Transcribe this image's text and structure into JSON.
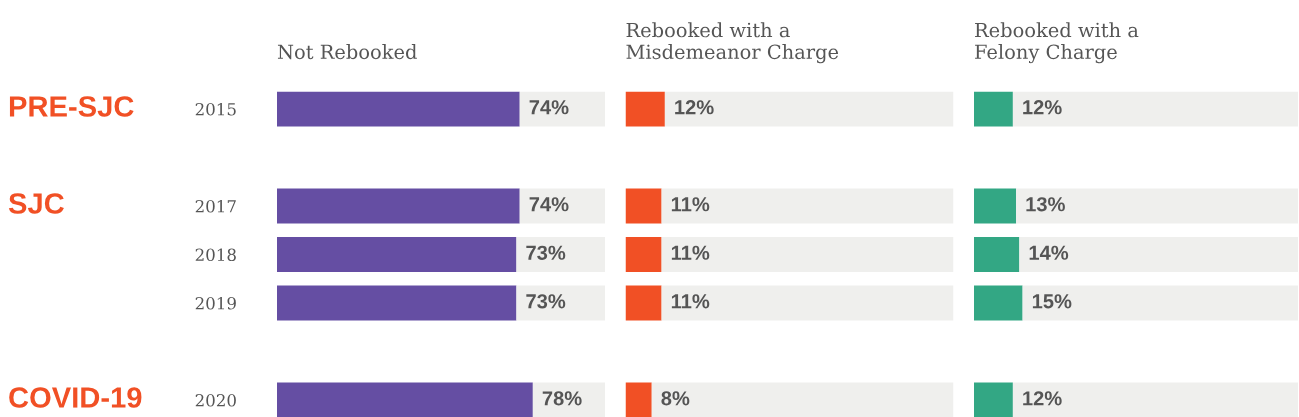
{
  "chart_data": [
    {
      "type": "bar",
      "orientation": "horizontal",
      "stacked": true,
      "title": "Not Rebooked",
      "categories": [
        "2015",
        null,
        "2017",
        "2018",
        "2019",
        null,
        "2020"
      ],
      "series": [
        {
          "color": "#654ea3",
          "values": [
            74,
            null,
            74,
            73,
            73,
            null,
            78
          ],
          "value_labels": [
            "74%",
            null,
            "74%",
            "73%",
            "73%",
            null,
            "78%"
          ]
        },
        {
          "color": "#efefed",
          "values": [
            26,
            null,
            26,
            27,
            27,
            null,
            22
          ]
        }
      ],
      "xlim": [
        0,
        100
      ],
      "tick_labels": "y",
      "annotations": [
        "PRE-SJC",
        "SJC",
        "COVID-19"
      ]
    },
    {
      "type": "bar",
      "orientation": "horizontal",
      "stacked": true,
      "title": "Rebooked with a\nMisdemeanor Charge",
      "categories": [
        "2015",
        null,
        "2017",
        "2018",
        "2019",
        null,
        "2020"
      ],
      "series": [
        {
          "color": "#f15025",
          "values": [
            12,
            null,
            11,
            11,
            11,
            null,
            8
          ],
          "value_labels": [
            "12%",
            null,
            "11%",
            "11%",
            "11%",
            null,
            "8%"
          ]
        },
        {
          "color": "#efefed",
          "values": [
            88,
            null,
            89,
            89,
            89,
            null,
            92
          ]
        }
      ],
      "xlim": [
        0,
        100
      ],
      "tick_labels": false
    },
    {
      "type": "bar",
      "orientation": "horizontal",
      "stacked": true,
      "title": "Rebooked with a\nFelony Charge",
      "categories": [
        "2015",
        null,
        "2017",
        "2018",
        "2019",
        null,
        "2020"
      ],
      "series": [
        {
          "color": "#33a784",
          "values": [
            12,
            null,
            13,
            14,
            15,
            null,
            12
          ],
          "value_labels": [
            "12%",
            null,
            "13%",
            "14%",
            "15%",
            null,
            "12%"
          ]
        },
        {
          "color": "#efefed",
          "values": [
            88,
            null,
            87,
            86,
            85,
            null,
            88
          ]
        }
      ],
      "xlim": [
        0,
        100
      ],
      "tick_labels": false
    }
  ]
}
